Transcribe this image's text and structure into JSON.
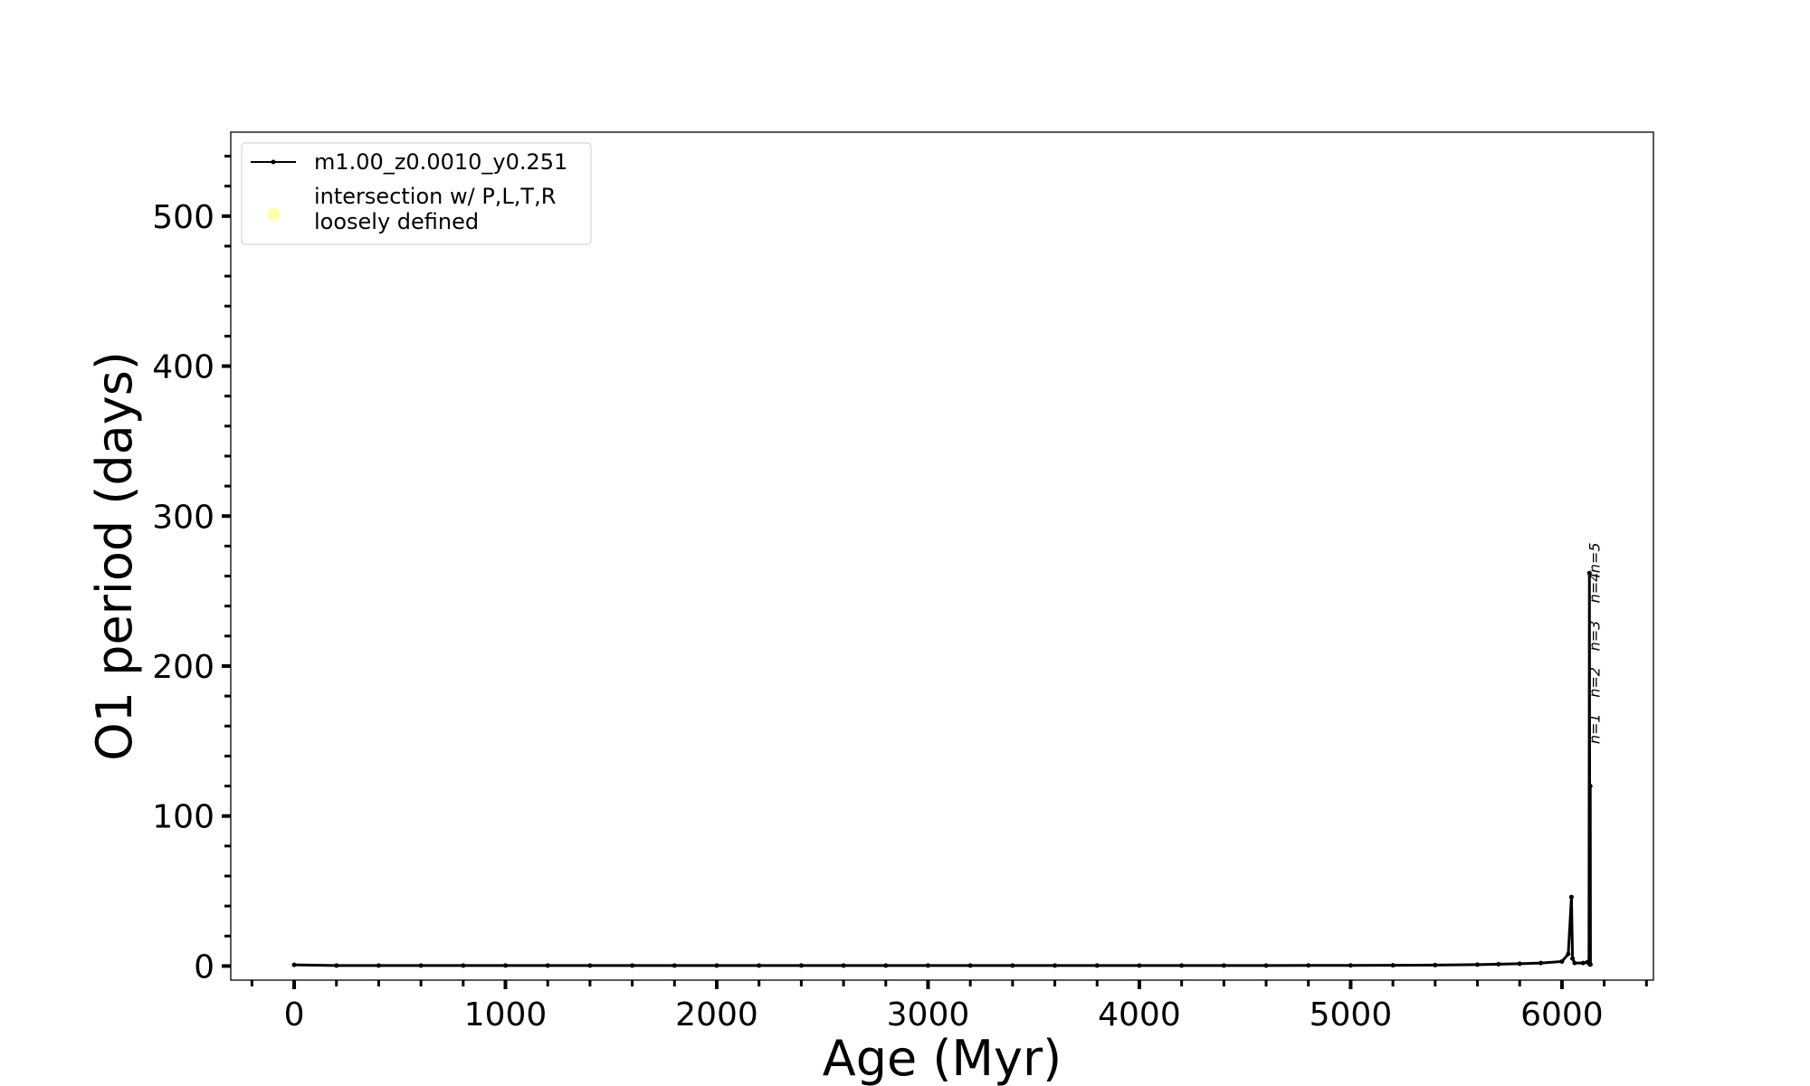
{
  "chart_data": {
    "type": "line",
    "xlabel": "Age (Myr)",
    "ylabel": "O1 period (days)",
    "xlim": [
      -300,
      6433
    ],
    "ylim": [
      -9.4,
      556
    ],
    "xticks": [
      0,
      1000,
      2000,
      3000,
      4000,
      5000,
      6000
    ],
    "yticks": [
      0,
      100,
      200,
      300,
      400,
      500
    ],
    "xminorticks": [
      -200,
      200,
      400,
      600,
      800,
      1200,
      1400,
      1600,
      1800,
      2200,
      2400,
      2600,
      2800,
      3200,
      3400,
      3600,
      3800,
      4200,
      4400,
      4600,
      4800,
      5200,
      5400,
      5600,
      5800,
      6200,
      6400
    ],
    "yminorticks": [
      20,
      40,
      60,
      80,
      120,
      140,
      160,
      180,
      220,
      240,
      260,
      280,
      320,
      340,
      360,
      380,
      420,
      440,
      460,
      480,
      520,
      540
    ],
    "legend": "upper left",
    "series": [
      {
        "name": "m1.00_z0.0010_y0.251",
        "color": "#000000",
        "marker": true,
        "x": [
          0,
          200,
          400,
          600,
          800,
          1000,
          1200,
          1400,
          1600,
          1800,
          2000,
          2200,
          2400,
          2600,
          2800,
          3000,
          3200,
          3400,
          3600,
          3800,
          4000,
          4200,
          4400,
          4600,
          4800,
          5000,
          5200,
          5400,
          5600,
          5700,
          5800,
          5900,
          6000,
          6030,
          6045,
          6050,
          6060,
          6100,
          6120,
          6128,
          6130,
          6132,
          6134,
          6135
        ],
        "values": [
          0.8,
          0.3,
          0.3,
          0.3,
          0.3,
          0.3,
          0.3,
          0.3,
          0.3,
          0.3,
          0.3,
          0.3,
          0.3,
          0.3,
          0.3,
          0.3,
          0.3,
          0.3,
          0.3,
          0.3,
          0.3,
          0.3,
          0.3,
          0.3,
          0.4,
          0.4,
          0.5,
          0.6,
          0.9,
          1.2,
          1.5,
          2,
          3,
          8,
          46,
          5,
          2,
          2,
          2.5,
          3,
          262,
          1,
          120,
          1
        ]
      },
      {
        "name": "intersection w/ P,L,T,R\nloosely defined",
        "color": "#ffffaa",
        "marker": "circle",
        "x": [],
        "values": []
      }
    ],
    "annotations": [
      {
        "text": "n=1",
        "x": 6178,
        "y": 148
      },
      {
        "text": "n=2",
        "x": 6178,
        "y": 179
      },
      {
        "text": "n=3",
        "x": 6178,
        "y": 210
      },
      {
        "text": "n=4",
        "x": 6178,
        "y": 242
      },
      {
        "text": "n=5",
        "x": 6178,
        "y": 262
      }
    ]
  }
}
